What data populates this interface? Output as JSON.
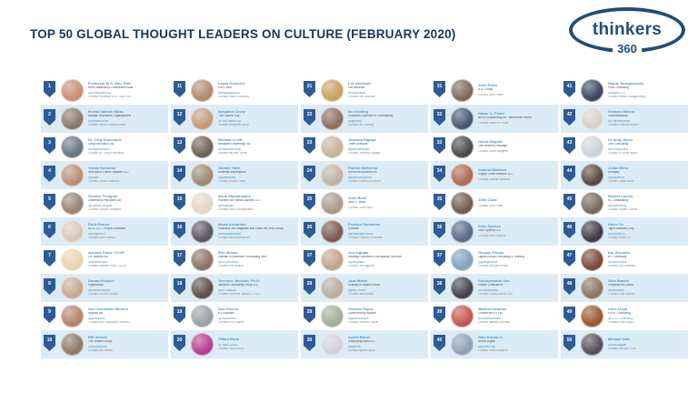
{
  "title": "TOP 50 GLOBAL THOUGHT LEADERS ON CULTURE (FEBRUARY 2020)",
  "logo": {
    "brand": "thinkers",
    "number": "360",
    "color": "#1f4e79"
  },
  "colors": {
    "title": "#17375e",
    "badge": "#2e5b97",
    "row_alt_background": "#dcecf7",
    "name_link": "#4e95c9",
    "org_text": "#4d4d4d",
    "contact_text": "#8a8a8a"
  },
  "entries": [
    {
      "rank": 1,
      "name": "Professor M.S. Rao, PhD",
      "org": "MSR Leadership Consultants India",
      "handle": "@professormsrao",
      "contact": "Contact Professor M.S. Rao, PhD",
      "photo": "#c98f72"
    },
    {
      "rank": 2,
      "name": "Murad Salman Mirza",
      "org": "Multiple Reputable Organizations",
      "handle": "@MuradSMirza",
      "contact": "Contact Murad Salman Mirza",
      "photo": "#8a7a6d"
    },
    {
      "rank": 3,
      "name": "Dr. Oleg Konovalov",
      "org": "Oleg Konovalov Ltd",
      "handle": "@olegkonovalov",
      "contact": "Contact Dr. Oleg Konovalov",
      "photo": "#6b7785"
    },
    {
      "rank": 4,
      "name": "Yoram Solomon",
      "org": "Innovation Culture Institute LLC",
      "handle": "@yoram",
      "contact": "Contact Yoram Solomon",
      "photo": "#b98f74"
    },
    {
      "rank": 5,
      "name": "Gordon Tredgold",
      "org": "Leadership Principles Ltd",
      "handle": "@GordonTredgold",
      "contact": "Contact Gordon Tredgold",
      "photo": "#9a8573"
    },
    {
      "rank": 6,
      "name": "Ruth Pearce",
      "org": "ALLE LLC - Project Motivator",
      "handle": "@ruthpearce",
      "contact": "Contact Ruth Pearce",
      "photo": "#d9c7b8"
    },
    {
      "rank": 7,
      "name": "Annette Franz, CCXP",
      "org": "CX Journey Inc.",
      "handle": "@annettefranz",
      "contact": "Contact Annette Franz, CCXP",
      "photo": "#e8d3b1"
    },
    {
      "rank": 8,
      "name": "Donna Peeples",
      "org": "Pypestream",
      "handle": "@DonnaPeeples",
      "contact": "Contact Donna Peeples",
      "photo": "#c5a98f"
    },
    {
      "rank": 9,
      "name": "Geri Schneider Winters",
      "org": "Wyyzzk Inc.",
      "handle": "@geriwinters",
      "contact": "Contact Geri Schneider Winters",
      "photo": "#b5836b"
    },
    {
      "rank": 10,
      "name": "Bill Jensen",
      "org": "The Jensen Group",
      "handle": "@simpletonbill",
      "contact": "Contact Bill Jensen",
      "photo": "#8f7a66"
    },
    {
      "rank": 11,
      "name": "Laura Goodrich",
      "org": "GWT Next",
      "handle": "@lauraagoodrich",
      "contact": "Contact Laura Goodrich",
      "photo": "#b08a70"
    },
    {
      "rank": 12,
      "name": "Benjamin Drury",
      "org": "The Culture Guy",
      "handle": "@TheCultureGuy",
      "contact": "Contact Benjamin Drury",
      "photo": "#c49a7b"
    },
    {
      "rank": 13,
      "name": "Michael Levitt",
      "org": "Breakfast Leadership Inc.",
      "handle": "@bfastleadership",
      "contact": "Contact Michael Levitt",
      "photo": "#6e6257"
    },
    {
      "rank": 14,
      "name": "Gamiel Yafai",
      "org": "Diversity Marketplace",
      "handle": "@gamielyafai",
      "contact": "Contact Gamiel Yafai",
      "photo": "#9c8a7a"
    },
    {
      "rank": 15,
      "name": "Anna Stamatelatos",
      "org": "Partners for Human Aspects LLC",
      "handle": "@annastam",
      "contact": "Contact Anna Stamatelatos",
      "photo": "#e5d6c5"
    },
    {
      "rank": 16,
      "name": "Moira Alexander",
      "org": "PMWorld 360 Magazine and Lead-Her-Ship Group",
      "handle": "@moiraalexander",
      "contact": "Contact Moira Alexander",
      "photo": "#5d5560"
    },
    {
      "rank": 17,
      "name": "Eric Wilson",
      "org": "Institute of Business Forecasting (IBF)",
      "handle": "@EricWilsonIBF",
      "contact": "Contact Eric Wilson",
      "photo": "#8a7465"
    },
    {
      "rank": 18,
      "name": "Terrence Jackson, Ph.D.",
      "org": "Jackson Consulting Group LLC",
      "handle": "@DrTJackson",
      "contact": "Contact Terrence Jackson, Ph.D.",
      "photo": "#5c5148"
    },
    {
      "rank": 19,
      "name": "Don Rheem",
      "org": "E3 Solutions",
      "handle": "@DonRheem",
      "contact": "Contact Don Rheem",
      "photo": "#9aa0a8"
    },
    {
      "rank": 20,
      "name": "Tiffani Bova",
      "org": "",
      "handle": "@Tiffani_Bova",
      "contact": "Contact Tiffani Bova",
      "photo": "#b53f8f"
    },
    {
      "rank": 21,
      "name": "Lee Atchison",
      "org": "Lee Atchison",
      "handle": "@leeatchison",
      "contact": "Contact Lee Atchison",
      "photo": "#c9a05e"
    },
    {
      "rank": 22,
      "name": "Ian Golding",
      "org": "Customer Experience Consultancy",
      "handle": "@ijgolding",
      "contact": "Contact Ian Golding",
      "photo": "#8b6f5c"
    },
    {
      "rank": 23,
      "name": "Jasenka Rapajic",
      "org": "Three Avenues",
      "handle": "@jasenkarapajic",
      "contact": "Contact Jasenka Rapajic",
      "photo": "#c7b49a"
    },
    {
      "rank": 24,
      "name": "Patrick McKenna",
      "org": "McKenna Advisors Inc.",
      "handle": "@patrickmckenna",
      "contact": "Contact Patrick McKenna",
      "photo": "#bfb2a4"
    },
    {
      "rank": 25,
      "name": "John Beck",
      "org": "John C. Beck",
      "handle": "",
      "contact": "Contact John Beck",
      "photo": "#a89a8a"
    },
    {
      "rank": 26,
      "name": "Pratima Gluckman",
      "org": "VMware",
      "handle": "@pratimagluckman",
      "contact": "Contact Pratima Gluckman",
      "photo": "#7a5a50"
    },
    {
      "rank": 27,
      "name": "Jon Ingham",
      "org": "Strategic Dynamics Consultancy Services",
      "handle": "@joningham",
      "contact": "Contact Jon Ingham",
      "photo": "#c0a48e"
    },
    {
      "rank": 28,
      "name": "Jack Maher",
      "org": "Scaling for Modern Work",
      "handle": "@jack_maher",
      "contact": "Contact Jack Maher",
      "photo": "#b7aca0"
    },
    {
      "rank": 29,
      "name": "Graeme Payne",
      "org": "Cybersecurity Advisor",
      "handle": "@graemepayne",
      "contact": "Contact Graeme Payne",
      "photo": "#9fae9a"
    },
    {
      "rank": 30,
      "name": "Ayelet Baron",
      "org": "Simplifying Work LLC",
      "handle": "@ayeletb",
      "contact": "Contact Ayelet Baron",
      "photo": "#cfd3d8"
    },
    {
      "rank": 31,
      "name": "John Paine",
      "org": "BTC Group",
      "handle": "",
      "contact": "Contact John Paine",
      "photo": "#7d6a5c"
    },
    {
      "rank": 32,
      "name": "Gabor A. Pinter",
      "org": "BPhD Engineering Kft - Blockchain expert",
      "handle": "",
      "contact": "Contact Gabor A. Pinter",
      "photo": "#46586e"
    },
    {
      "rank": 33,
      "name": "David Wegerle",
      "org": "One Network Holdings",
      "handle": "",
      "contact": "Contact David Wegerle",
      "photo": "#4a4a4a"
    },
    {
      "rank": 34,
      "name": "Joanna Martinez",
      "org": "Supply Chain Advisors LLC",
      "handle": "",
      "contact": "Contact Joanna Martinez",
      "photo": "#b06a52"
    },
    {
      "rank": 35,
      "name": "John Clark",
      "org": "",
      "handle": "",
      "contact": "Contact John Clark",
      "photo": "#6f5d52"
    },
    {
      "rank": 36,
      "name": "John Spence",
      "org": "John Spence LLC",
      "handle": "",
      "contact": "Contact John Spence",
      "photo": "#5a6b85"
    },
    {
      "rank": 37,
      "name": "George Firican",
      "org": "LightsOnData Consulting & Training",
      "handle": "@georgefirican",
      "contact": "Contact George Firican",
      "photo": "#7fa3c0"
    },
    {
      "rank": 38,
      "name": "Soumyasanto Sen",
      "org": "People Conscience",
      "handle": "@soumyasanto",
      "contact": "Contact Soumyasanto Sen",
      "photo": "#3f434e"
    },
    {
      "rank": 39,
      "name": "Marisol Umbrian",
      "org": "CulturePak 5.0 Ltd",
      "handle": "@marisolumbrian",
      "contact": "Contact Marisol Umbrian",
      "photo": "#c4564f"
    },
    {
      "rank": 40,
      "name": "Ram Kumar G.",
      "org": "Nexus Digital",
      "handle": "@gramkumar",
      "contact": "Contact Ram Kumar G.",
      "photo": "#8fa0b5"
    },
    {
      "rank": 41,
      "name": "Haydn Shaughnessy",
      "org": "Flow Consulting",
      "handle": "@haydn1701",
      "contact": "Contact Haydn Shaughnessy",
      "photo": "#3c4660"
    },
    {
      "rank": 42,
      "name": "Graham Wilson",
      "org": "Successfactory",
      "handle": "@GrahamWilson",
      "contact": "Contact Graham Wilson",
      "photo": "#d8d2c8"
    },
    {
      "rank": 43,
      "name": "Dr Andy Wynn",
      "org": "1HR Consulting",
      "handle": "@DrAndyWynn",
      "contact": "Contact Dr Andy Wynn",
      "photo": "#cbd2d8"
    },
    {
      "rank": 44,
      "name": "Julian Birse",
      "org": "Redaptly",
      "handle": "@julianbirse",
      "contact": "Contact Julian Birse",
      "photo": "#5a4a3f"
    },
    {
      "rank": 45,
      "name": "Robert Larrow",
      "org": "RL Consultancy",
      "handle": "@robertlarrow",
      "contact": "Contact Robert Larrow",
      "photo": "#7a6a5e"
    },
    {
      "rank": 46,
      "name": "Helen Yu",
      "org": "Tigon Advisory Corp.",
      "handle": "@YuHelenYu",
      "contact": "Contact Helen Yu",
      "photo": "#403a45"
    },
    {
      "rank": 47,
      "name": "Kai Grunwitz",
      "org": "NTT Germany",
      "handle": "@KaiGrunwitz",
      "contact": "Contact Kai Grunwitz",
      "photo": "#7a4a3a"
    },
    {
      "rank": 48,
      "name": "Ollie Rankin",
      "org": "Peoplesmith Global",
      "handle": "@ollierankin",
      "contact": "Contact Ollie Rankin",
      "photo": "#8a765f"
    },
    {
      "rank": 49,
      "name": "Clive Lloyd",
      "org": "GYST Consulting",
      "handle": "@GYSTConsulting",
      "contact": "Contact Clive Lloyd",
      "photo": "#9a5a32"
    },
    {
      "rank": 50,
      "name": "Michael Gale",
      "org": "",
      "handle": "@michaelgale",
      "contact": "Contact Michael Gale",
      "photo": "#55505a"
    }
  ]
}
